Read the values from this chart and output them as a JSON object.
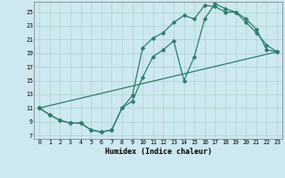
{
  "xlabel": "Humidex (Indice chaleur)",
  "bg_color": "#cde8f0",
  "line_color": "#2d7d6e",
  "grid_color": "#aad4cc",
  "xlim": [
    -0.5,
    23.5
  ],
  "ylim": [
    6.5,
    26.5
  ],
  "xticks": [
    0,
    1,
    2,
    3,
    4,
    5,
    6,
    7,
    8,
    9,
    10,
    11,
    12,
    13,
    14,
    15,
    16,
    17,
    18,
    19,
    20,
    21,
    22,
    23
  ],
  "yticks": [
    7,
    9,
    11,
    13,
    15,
    17,
    19,
    21,
    23,
    25
  ],
  "line1_x": [
    0,
    1,
    2,
    3,
    4,
    5,
    6,
    7,
    8,
    9,
    10,
    11,
    12,
    13,
    14,
    15,
    16,
    17,
    18,
    19,
    20,
    21,
    22,
    23
  ],
  "line1_y": [
    11,
    10,
    9.2,
    8.8,
    8.8,
    7.8,
    7.5,
    7.8,
    11,
    12,
    15.5,
    18.5,
    19.5,
    20.8,
    15,
    18.5,
    24,
    26.2,
    25.5,
    25,
    23.5,
    22,
    20.2,
    19.2
  ],
  "line2_x": [
    0,
    1,
    2,
    3,
    4,
    5,
    6,
    7,
    8,
    9,
    10,
    11,
    12,
    13,
    14,
    15,
    16,
    17,
    18,
    19,
    20,
    21,
    22,
    23
  ],
  "line2_y": [
    11,
    10,
    9.2,
    8.8,
    8.8,
    7.8,
    7.5,
    7.8,
    11,
    12.8,
    19.8,
    21.2,
    22,
    23.5,
    24.5,
    24,
    26,
    25.8,
    25,
    25,
    24,
    22.5,
    19.5,
    19.2
  ],
  "line3_x": [
    0,
    23
  ],
  "line3_y": [
    11,
    19.2
  ]
}
